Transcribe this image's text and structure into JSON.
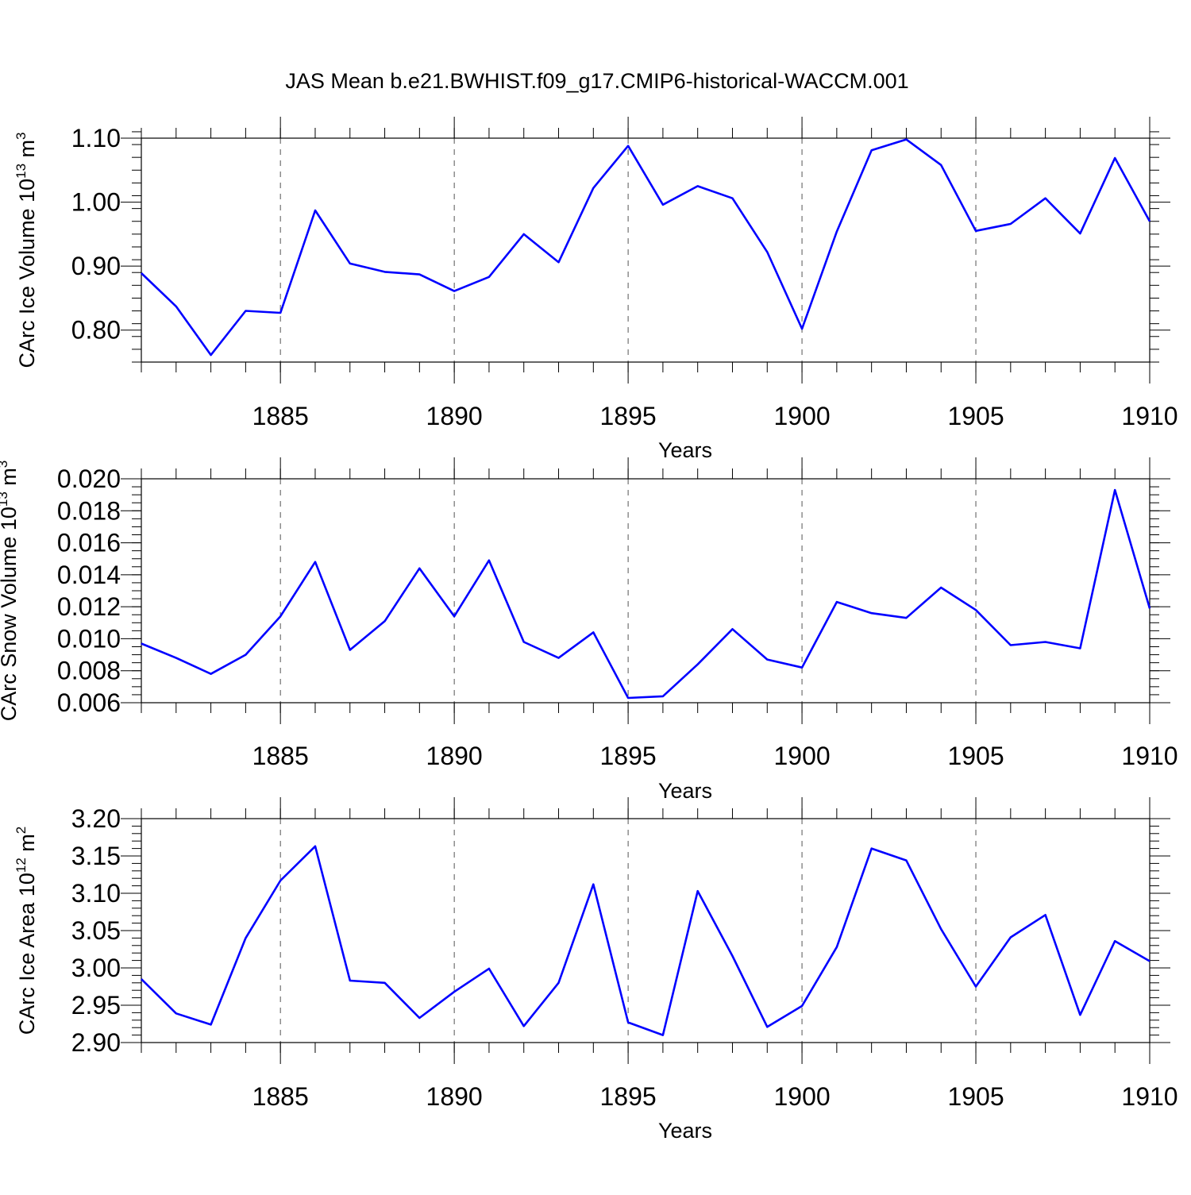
{
  "title": "JAS Mean b.e21.BWHIST.f09_g17.CMIP6-historical-WACCM.001",
  "colors": {
    "line": "#0000ff",
    "frame": "#000000",
    "grid": "#555555"
  },
  "chart_data": [
    {
      "type": "line",
      "ylabel_main": "CArc Ice Volume 10",
      "ylabel_exp": "13",
      "ylabel_unit": " m",
      "ylabel_unit_exp": "3",
      "xlabel": "Years",
      "xlim": [
        1881,
        1910
      ],
      "ylim": [
        0.75,
        1.1
      ],
      "x_ticks": [
        1885,
        1890,
        1895,
        1900,
        1905,
        1910
      ],
      "x_tick_labels": [
        "1885",
        "1890",
        "1895",
        "1900",
        "1905",
        "1910"
      ],
      "y_ticks": [
        0.8,
        0.9,
        1.0,
        1.1
      ],
      "y_tick_labels": [
        "0.80",
        "0.90",
        "1.00",
        "1.10"
      ],
      "y_minor_step": 0.02,
      "x_minor_step": 1,
      "vertical_grid": true,
      "series": [
        {
          "x": [
            1881,
            1882,
            1883,
            1884,
            1885,
            1886,
            1887,
            1888,
            1889,
            1890,
            1891,
            1892,
            1893,
            1894,
            1895,
            1896,
            1897,
            1898,
            1899,
            1900,
            1901,
            1902,
            1903,
            1904,
            1905,
            1906,
            1907,
            1908,
            1909,
            1910
          ],
          "values": [
            0.889,
            0.837,
            0.761,
            0.83,
            0.827,
            0.987,
            0.904,
            0.891,
            0.887,
            0.861,
            0.883,
            0.95,
            0.906,
            1.022,
            1.088,
            0.996,
            1.025,
            1.006,
            0.922,
            0.802,
            0.954,
            1.081,
            1.098,
            1.058,
            0.955,
            0.966,
            1.006,
            0.951,
            1.069,
            0.97
          ]
        }
      ]
    },
    {
      "type": "line",
      "ylabel_main": "CArc Snow Volume 10",
      "ylabel_exp": "13",
      "ylabel_unit": " m",
      "ylabel_unit_exp": "3",
      "xlabel": "Years",
      "xlim": [
        1881,
        1910
      ],
      "ylim": [
        0.006,
        0.02
      ],
      "x_ticks": [
        1885,
        1890,
        1895,
        1900,
        1905,
        1910
      ],
      "x_tick_labels": [
        "1885",
        "1890",
        "1895",
        "1900",
        "1905",
        "1910"
      ],
      "y_ticks": [
        0.006,
        0.008,
        0.01,
        0.012,
        0.014,
        0.016,
        0.018,
        0.02
      ],
      "y_tick_labels": [
        "0.006",
        "0.008",
        "0.010",
        "0.012",
        "0.014",
        "0.016",
        "0.018",
        "0.020"
      ],
      "y_minor_step": 0.0005,
      "x_minor_step": 1,
      "vertical_grid": true,
      "series": [
        {
          "x": [
            1881,
            1882,
            1883,
            1884,
            1885,
            1886,
            1887,
            1888,
            1889,
            1890,
            1891,
            1892,
            1893,
            1894,
            1895,
            1896,
            1897,
            1898,
            1899,
            1900,
            1901,
            1902,
            1903,
            1904,
            1905,
            1906,
            1907,
            1908,
            1909,
            1910
          ],
          "values": [
            0.0097,
            0.0088,
            0.0078,
            0.009,
            0.0114,
            0.0148,
            0.0093,
            0.0111,
            0.0144,
            0.0114,
            0.0149,
            0.0098,
            0.0088,
            0.0104,
            0.0063,
            0.0064,
            0.0084,
            0.0106,
            0.0087,
            0.0082,
            0.0123,
            0.0116,
            0.0113,
            0.0132,
            0.0118,
            0.0096,
            0.0098,
            0.0094,
            0.0193,
            0.0119
          ]
        }
      ]
    },
    {
      "type": "line",
      "ylabel_main": "CArc Ice Area 10",
      "ylabel_exp": "12",
      "ylabel_unit": " m",
      "ylabel_unit_exp": "2",
      "xlabel": "Years",
      "xlim": [
        1881,
        1910
      ],
      "ylim": [
        2.9,
        3.2
      ],
      "x_ticks": [
        1885,
        1890,
        1895,
        1900,
        1905,
        1910
      ],
      "x_tick_labels": [
        "1885",
        "1890",
        "1895",
        "1900",
        "1905",
        "1910"
      ],
      "y_ticks": [
        2.9,
        2.95,
        3.0,
        3.05,
        3.1,
        3.15,
        3.2
      ],
      "y_tick_labels": [
        "2.90",
        "2.95",
        "3.00",
        "3.05",
        "3.10",
        "3.15",
        "3.20"
      ],
      "y_minor_step": 0.01,
      "x_minor_step": 1,
      "vertical_grid": true,
      "series": [
        {
          "x": [
            1881,
            1882,
            1883,
            1884,
            1885,
            1886,
            1887,
            1888,
            1889,
            1890,
            1891,
            1892,
            1893,
            1894,
            1895,
            1896,
            1897,
            1898,
            1899,
            1900,
            1901,
            1902,
            1903,
            1904,
            1905,
            1906,
            1907,
            1908,
            1909,
            1910
          ],
          "values": [
            2.985,
            2.939,
            2.924,
            3.04,
            3.117,
            3.163,
            2.983,
            2.98,
            2.933,
            2.968,
            2.999,
            2.922,
            2.98,
            3.112,
            2.927,
            2.91,
            3.103,
            3.016,
            2.921,
            2.949,
            3.028,
            3.16,
            3.144,
            3.052,
            2.975,
            3.041,
            3.071,
            2.937,
            3.036,
            3.009
          ]
        }
      ]
    }
  ]
}
